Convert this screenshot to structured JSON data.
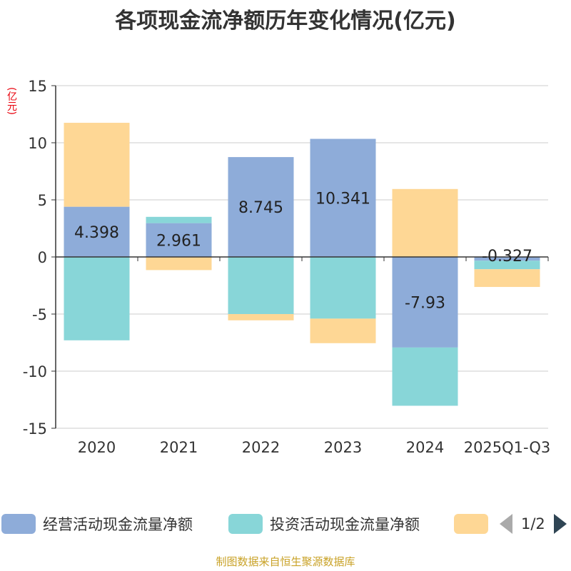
{
  "chart_data": {
    "type": "bar",
    "stacked": true,
    "title": "各项现金流净额历年变化情况(亿元)",
    "ylabel": "(亿元)",
    "ylim": [
      -15,
      15
    ],
    "yticks": [
      15,
      10,
      5,
      0,
      -5,
      -10,
      -15
    ],
    "grid": true,
    "categories": [
      "2020",
      "2021",
      "2022",
      "2023",
      "2024",
      "2025Q1-Q3"
    ],
    "series": [
      {
        "name": "经营活动现金流量净额",
        "color": "#8eacd9",
        "values": [
          4.398,
          2.961,
          8.745,
          10.341,
          -7.93,
          -0.327
        ],
        "labels": [
          "4.398",
          "2.961",
          "8.745",
          "10.341",
          "-7.93",
          "-0.327"
        ]
      },
      {
        "name": "投资活动现金流量净额",
        "color": "#88d6d8",
        "values": [
          -7.3,
          0.55,
          -5.0,
          -5.4,
          -5.1,
          -0.75
        ],
        "labels": []
      },
      {
        "name": "",
        "color": "#fed795",
        "values": [
          7.35,
          -1.15,
          -0.55,
          -2.15,
          5.95,
          -1.55
        ],
        "labels": []
      }
    ],
    "legend_position": "bottom",
    "legend_page": "1/2"
  },
  "source_text": "制图数据来自恒生聚源数据库"
}
